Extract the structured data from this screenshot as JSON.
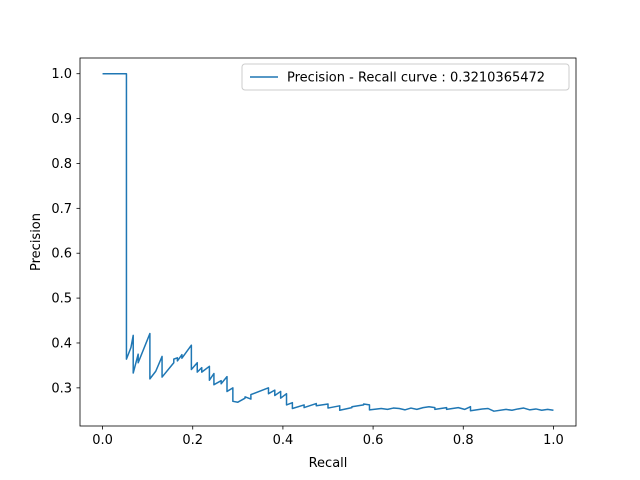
{
  "chart_data": {
    "type": "line",
    "xlabel": "Recall",
    "ylabel": "Precision",
    "xlim": [
      -0.05,
      1.05
    ],
    "ylim": [
      0.215,
      1.035
    ],
    "xticks": [
      "0.0",
      "0.2",
      "0.4",
      "0.6",
      "0.8",
      "1.0"
    ],
    "yticks": [
      "0.3",
      "0.4",
      "0.5",
      "0.6",
      "0.7",
      "0.8",
      "0.9",
      "1.0"
    ],
    "grid": false,
    "legend_position": "top-right",
    "line_color": "#1f77b4",
    "series": [
      {
        "name": "Precision - Recall curve : 0.3210365472",
        "points": [
          [
            0.0,
            1.0
          ],
          [
            0.053,
            1.0
          ],
          [
            0.053,
            0.364
          ],
          [
            0.063,
            0.39
          ],
          [
            0.068,
            0.417
          ],
          [
            0.068,
            0.333
          ],
          [
            0.079,
            0.375
          ],
          [
            0.079,
            0.356
          ],
          [
            0.105,
            0.421
          ],
          [
            0.105,
            0.32
          ],
          [
            0.118,
            0.337
          ],
          [
            0.132,
            0.37
          ],
          [
            0.132,
            0.324
          ],
          [
            0.158,
            0.356
          ],
          [
            0.158,
            0.364
          ],
          [
            0.166,
            0.367
          ],
          [
            0.166,
            0.36
          ],
          [
            0.176,
            0.374
          ],
          [
            0.176,
            0.366
          ],
          [
            0.197,
            0.395
          ],
          [
            0.197,
            0.341
          ],
          [
            0.21,
            0.356
          ],
          [
            0.21,
            0.335
          ],
          [
            0.22,
            0.345
          ],
          [
            0.22,
            0.335
          ],
          [
            0.237,
            0.348
          ],
          [
            0.237,
            0.317
          ],
          [
            0.247,
            0.332
          ],
          [
            0.247,
            0.307
          ],
          [
            0.263,
            0.316
          ],
          [
            0.263,
            0.309
          ],
          [
            0.276,
            0.325
          ],
          [
            0.276,
            0.292
          ],
          [
            0.289,
            0.3
          ],
          [
            0.289,
            0.27
          ],
          [
            0.3,
            0.268
          ],
          [
            0.316,
            0.277
          ],
          [
            0.316,
            0.28
          ],
          [
            0.329,
            0.275
          ],
          [
            0.329,
            0.285
          ],
          [
            0.368,
            0.3
          ],
          [
            0.368,
            0.287
          ],
          [
            0.382,
            0.295
          ],
          [
            0.382,
            0.283
          ],
          [
            0.395,
            0.292
          ],
          [
            0.395,
            0.277
          ],
          [
            0.408,
            0.287
          ],
          [
            0.408,
            0.262
          ],
          [
            0.421,
            0.267
          ],
          [
            0.421,
            0.254
          ],
          [
            0.447,
            0.262
          ],
          [
            0.447,
            0.256
          ],
          [
            0.474,
            0.265
          ],
          [
            0.474,
            0.26
          ],
          [
            0.5,
            0.264
          ],
          [
            0.5,
            0.255
          ],
          [
            0.526,
            0.26
          ],
          [
            0.526,
            0.25
          ],
          [
            0.553,
            0.256
          ],
          [
            0.553,
            0.258
          ],
          [
            0.579,
            0.262
          ],
          [
            0.579,
            0.264
          ],
          [
            0.592,
            0.262
          ],
          [
            0.592,
            0.251
          ],
          [
            0.618,
            0.254
          ],
          [
            0.632,
            0.252
          ],
          [
            0.645,
            0.255
          ],
          [
            0.658,
            0.254
          ],
          [
            0.671,
            0.251
          ],
          [
            0.684,
            0.255
          ],
          [
            0.697,
            0.252
          ],
          [
            0.711,
            0.256
          ],
          [
            0.724,
            0.258
          ],
          [
            0.737,
            0.256
          ],
          [
            0.737,
            0.252
          ],
          [
            0.763,
            0.256
          ],
          [
            0.763,
            0.252
          ],
          [
            0.789,
            0.256
          ],
          [
            0.803,
            0.252
          ],
          [
            0.816,
            0.258
          ],
          [
            0.816,
            0.249
          ],
          [
            0.842,
            0.253
          ],
          [
            0.855,
            0.254
          ],
          [
            0.868,
            0.248
          ],
          [
            0.895,
            0.252
          ],
          [
            0.908,
            0.25
          ],
          [
            0.921,
            0.253
          ],
          [
            0.934,
            0.255
          ],
          [
            0.947,
            0.251
          ],
          [
            0.961,
            0.253
          ],
          [
            0.974,
            0.25
          ],
          [
            0.987,
            0.252
          ],
          [
            1.0,
            0.25
          ]
        ]
      }
    ]
  }
}
